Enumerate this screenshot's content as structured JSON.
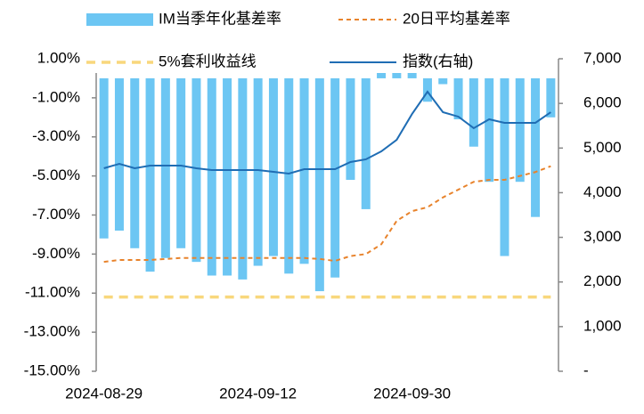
{
  "chart_data": {
    "type": "bar",
    "categories": [
      "2024-08-29",
      null,
      null,
      null,
      null,
      null,
      null,
      null,
      null,
      null,
      "2024-09-12",
      null,
      null,
      null,
      null,
      null,
      null,
      null,
      null,
      null,
      "2024-09-30",
      null,
      null,
      null,
      null,
      null,
      null,
      null,
      null,
      null
    ],
    "series": [
      {
        "name": "IM当季年化基差率",
        "type": "bar",
        "color": "#6cc6f3",
        "values": [
          -8.2,
          -7.8,
          -8.7,
          -9.9,
          -9.2,
          -8.7,
          -9.4,
          -10.1,
          -10.1,
          -10.3,
          -9.6,
          -9.1,
          -10.0,
          -9.5,
          -10.9,
          -10.2,
          -5.2,
          -6.7,
          1.0,
          1.0,
          0.5,
          -1.2,
          -0.3,
          -2.1,
          -3.5,
          -5.3,
          -9.1,
          -5.3,
          -7.1,
          -2.0
        ]
      },
      {
        "name": "20日平均基差率",
        "type": "line",
        "dashed": true,
        "color": "#e8832c",
        "values": [
          -9.4,
          -9.3,
          -9.3,
          -9.3,
          -9.25,
          -9.2,
          -9.2,
          -9.2,
          -9.2,
          -9.2,
          -9.2,
          -9.2,
          -9.2,
          -9.2,
          -9.25,
          -9.35,
          -9.1,
          -9.0,
          -8.5,
          -7.3,
          -6.8,
          -6.6,
          -6.1,
          -5.7,
          -5.3,
          -5.2,
          -5.2,
          -5.0,
          -4.8,
          -4.5
        ]
      },
      {
        "name": "5%套利收益线",
        "type": "line",
        "dashed": true,
        "color": "#f8d77c",
        "values": [
          -11.2,
          -11.2,
          -11.2,
          -11.2,
          -11.2,
          -11.2,
          -11.2,
          -11.2,
          -11.2,
          -11.2,
          -11.2,
          -11.2,
          -11.2,
          -11.2,
          -11.2,
          -11.2,
          -11.2,
          -11.2,
          -11.2,
          -11.2,
          -11.2,
          -11.2,
          -11.2,
          -11.2,
          -11.2,
          -11.2,
          -11.2,
          -11.2,
          -11.2,
          -11.2
        ]
      },
      {
        "name": "指数(右轴)",
        "type": "line",
        "axis": "y2",
        "color": "#1f6db4",
        "values": [
          4547,
          4647,
          4547,
          4607,
          4607,
          4607,
          4547,
          4507,
          4507,
          4507,
          4507,
          4467,
          4427,
          4527,
          4527,
          4527,
          4687,
          4747,
          4926,
          5185,
          5764,
          6262,
          5803,
          5704,
          5445,
          5644,
          5564,
          5564,
          5564,
          5803
        ]
      }
    ],
    "ylim": [
      -15,
      1
    ],
    "yticks": [
      {
        "value": 1,
        "label": "1.00%"
      },
      {
        "value": -1,
        "label": "-1.00%"
      },
      {
        "value": -3,
        "label": "-3.00%"
      },
      {
        "value": -5,
        "label": "-5.00%"
      },
      {
        "value": -7,
        "label": "-7.00%"
      },
      {
        "value": -9,
        "label": "-9.00%"
      },
      {
        "value": -11,
        "label": "-11.00%"
      },
      {
        "value": -13,
        "label": "-13.00%"
      },
      {
        "value": -15,
        "label": "-15.00%"
      }
    ],
    "y2lim": [
      0,
      7000
    ],
    "y2ticks": [
      {
        "value": 7000,
        "label": "7,000"
      },
      {
        "value": 6000,
        "label": "6,000"
      },
      {
        "value": 5000,
        "label": "5,000"
      },
      {
        "value": 4000,
        "label": "4,000"
      },
      {
        "value": 3000,
        "label": "3,000"
      },
      {
        "value": 2000,
        "label": "2,000"
      },
      {
        "value": 1000,
        "label": "1,000"
      },
      {
        "value": 0,
        "label": "-"
      }
    ],
    "grid": false
  }
}
